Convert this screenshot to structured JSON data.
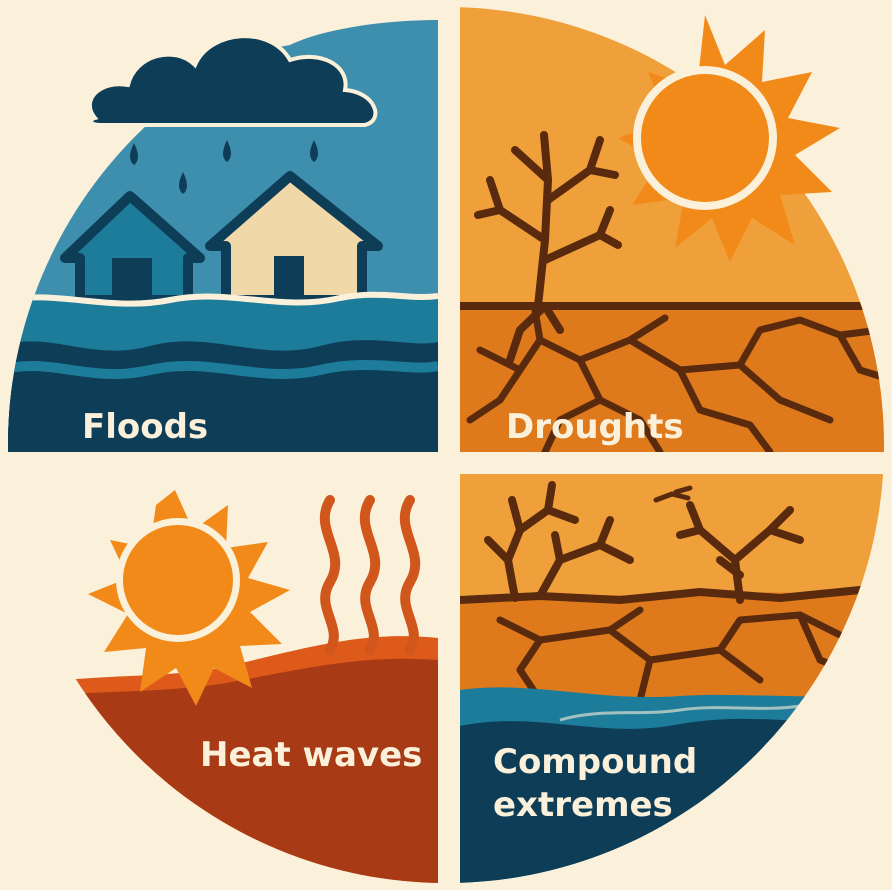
{
  "panels": {
    "floods": {
      "label": "Floods"
    },
    "droughts": {
      "label": "Droughts"
    },
    "heat_waves": {
      "label": "Heat waves"
    },
    "compound": {
      "label_line1": "Compound",
      "label_line2": "extremes"
    }
  },
  "colors": {
    "background": "#fbf0da",
    "navy": "#0e3d57",
    "teal": "#1c7c99",
    "sky_blue": "#3e8fad",
    "sand": "#f0d8a8",
    "orange": "#f0a03a",
    "bright_orange": "#f28a1a",
    "deep_orange": "#de7a1c",
    "rust": "#a93a16",
    "brown": "#5a2a0e"
  }
}
